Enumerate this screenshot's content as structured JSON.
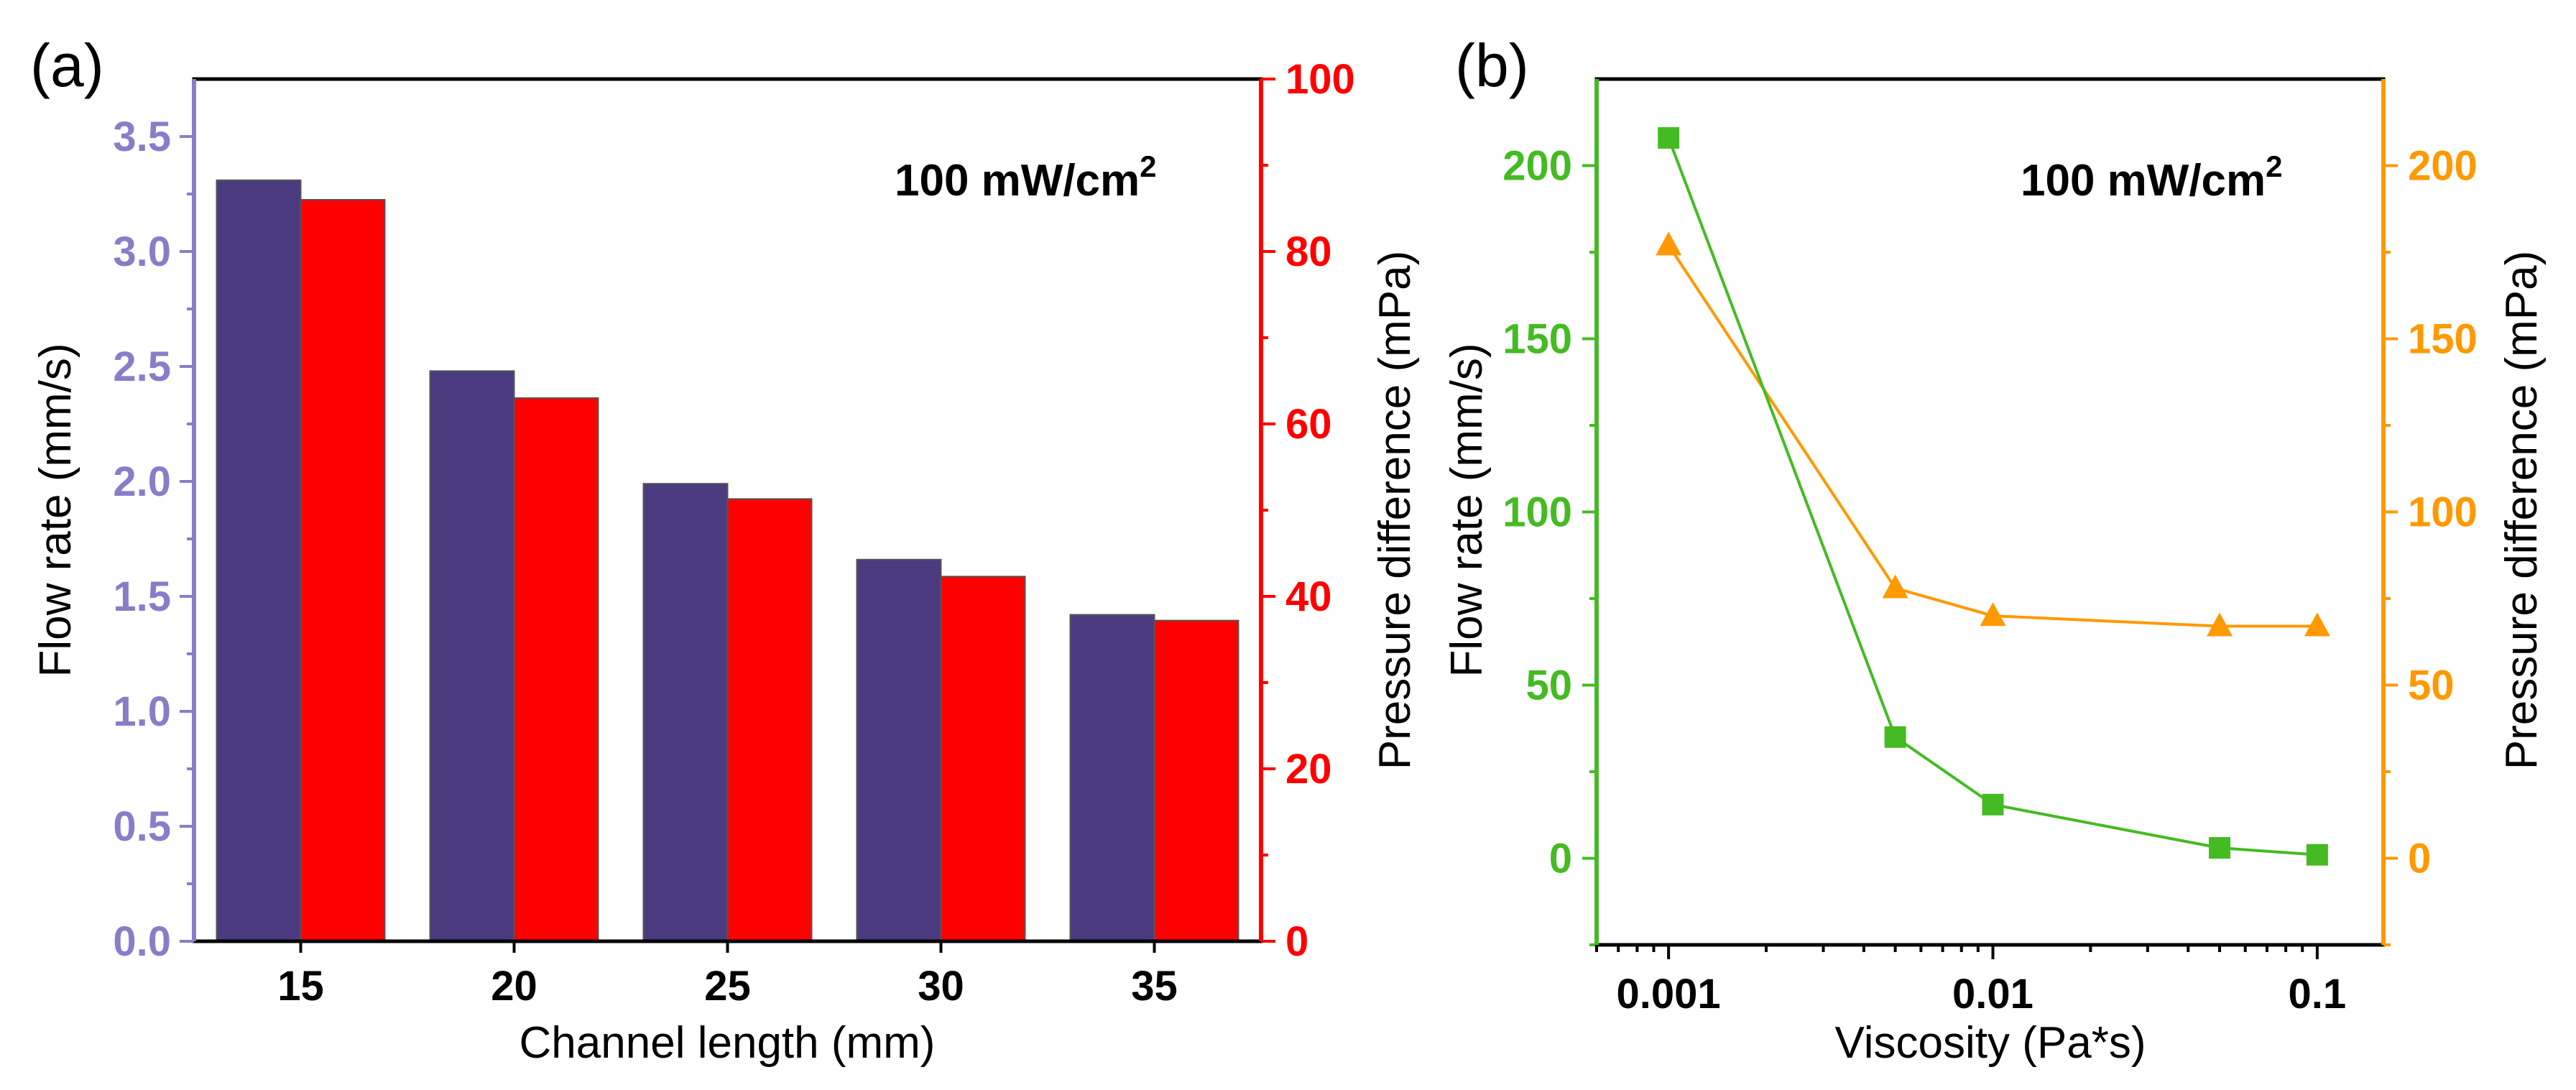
{
  "chart_data": [
    {
      "type": "bar",
      "panel_label": "(a)",
      "annotation": {
        "text": "100 mW/cm",
        "superscript": "2"
      },
      "xlabel": "Channel length (mm)",
      "categories": [
        "15",
        "20",
        "25",
        "30",
        "35"
      ],
      "left_axis": {
        "label": "Flow rate (mm/s)",
        "ylim": [
          0,
          3.75
        ],
        "ticks": [
          "0.0",
          "0.5",
          "1.0",
          "1.5",
          "2.0",
          "2.5",
          "3.0",
          "3.5"
        ],
        "color": "#8b7cc8"
      },
      "right_axis": {
        "label": "Pressure difference (mPa)",
        "ylim": [
          0,
          100
        ],
        "ticks": [
          "0",
          "20",
          "40",
          "60",
          "80",
          "100"
        ],
        "color": "#ff0000"
      },
      "series": [
        {
          "name": "Flow rate",
          "axis": "left",
          "color": "#4b3a80",
          "values": [
            3.31,
            2.48,
            1.99,
            1.66,
            1.42
          ]
        },
        {
          "name": "Pressure difference",
          "axis": "right",
          "color": "#ff0000",
          "values": [
            86,
            63,
            51.3,
            42.3,
            37.2
          ]
        }
      ]
    },
    {
      "type": "line",
      "panel_label": "(b)",
      "annotation": {
        "text": "100 mW/cm",
        "superscript": "2"
      },
      "xlabel": "Viscosity (Pa*s)",
      "xscale": "log",
      "xlim": [
        0.0006,
        0.16
      ],
      "x_ticks": [
        {
          "value": 0.001,
          "label": "0.001"
        },
        {
          "value": 0.01,
          "label": "0.01"
        },
        {
          "value": 0.1,
          "label": "0.1"
        }
      ],
      "left_axis": {
        "label": "Flow rate (mm/s)",
        "ylim": [
          -25,
          225
        ],
        "ticks": [
          "0",
          "50",
          "100",
          "150",
          "200"
        ],
        "color": "#44bb22"
      },
      "right_axis": {
        "label": "Pressure difference (mPa)",
        "ylim": [
          -25,
          225
        ],
        "ticks": [
          "0",
          "50",
          "100",
          "150",
          "200"
        ],
        "color": "#ff9900"
      },
      "series": [
        {
          "name": "Flow rate",
          "axis": "left",
          "marker": "square",
          "color": "#44bb22",
          "x": [
            0.001,
            0.005,
            0.01,
            0.05,
            0.1
          ],
          "y": [
            208,
            35,
            15.5,
            3,
            1
          ]
        },
        {
          "name": "Pressure difference",
          "axis": "right",
          "marker": "triangle",
          "color": "#ff9900",
          "x": [
            0.001,
            0.005,
            0.01,
            0.05,
            0.1
          ],
          "y": [
            177,
            78,
            70,
            67,
            67
          ]
        }
      ]
    }
  ]
}
